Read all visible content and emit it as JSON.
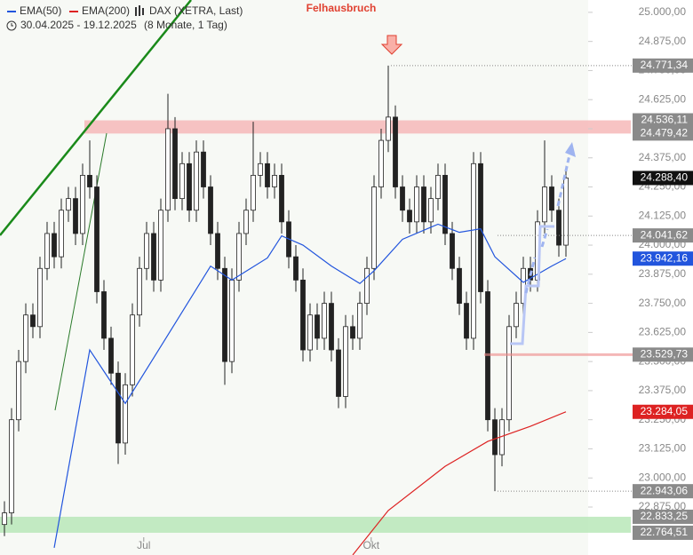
{
  "chart_data": {
    "type": "candlestick",
    "title": "DAX (XETRA, Last)",
    "subtitle": "30.04.2025 - 19.12.2025",
    "period": "(8 Monate, 1 Tag)",
    "annotation": "Felhausbruch",
    "ylim": [
      22669,
      25053
    ],
    "yticks": [
      {
        "value": 25000,
        "label": "25.000,00"
      },
      {
        "value": 24875,
        "label": "24.875,00"
      },
      {
        "value": 24750,
        "label": "24.750,00"
      },
      {
        "value": 24625,
        "label": "24.625,00"
      },
      {
        "value": 24500,
        "label": "24.500,00"
      },
      {
        "value": 24375,
        "label": "24.375,00"
      },
      {
        "value": 24250,
        "label": "24.250,00"
      },
      {
        "value": 24125,
        "label": "24.125,00"
      },
      {
        "value": 24000,
        "label": "24.000,00"
      },
      {
        "value": 23875,
        "label": "23.875,00"
      },
      {
        "value": 23750,
        "label": "23.750,00"
      },
      {
        "value": 23625,
        "label": "23.625,00"
      },
      {
        "value": 23500,
        "label": "23.500,00"
      },
      {
        "value": 23375,
        "label": "23.375,00"
      },
      {
        "value": 23250,
        "label": "23.250,00"
      },
      {
        "value": 23125,
        "label": "23.125,00"
      },
      {
        "value": 23000,
        "label": "23.000,00"
      },
      {
        "value": 22875,
        "label": "22.875,00"
      }
    ],
    "xticks": [
      {
        "value": 19.6,
        "label": "Jul"
      },
      {
        "value": 51.6,
        "label": "Okt"
      }
    ],
    "open": [
      22800,
      22850,
      23250,
      23500,
      23700,
      23650,
      23900,
      24050,
      23950,
      24150,
      24200,
      24050,
      24300,
      24250,
      23800,
      23600,
      23450,
      23150,
      23400,
      23700,
      23900,
      24050,
      23850,
      24150,
      24500,
      24200,
      24350,
      24150,
      24400,
      24250,
      24050,
      23900,
      23500,
      23850,
      24050,
      24150,
      24300,
      24350,
      24250,
      24300,
      24100,
      23950,
      23850,
      23550,
      23700,
      23600,
      23750,
      23550,
      23350,
      23650,
      23600,
      23750,
      23900,
      24250,
      24450,
      24550,
      24250,
      24150,
      24100,
      24250,
      24100,
      24200,
      24300,
      24050,
      23900,
      23750,
      23600,
      24350,
      23800,
      23250,
      23100,
      23250,
      23650,
      23750,
      23900,
      23850,
      24100,
      24250,
      24150,
      24000
    ],
    "high": [
      22900,
      23300,
      23550,
      23750,
      23750,
      23950,
      24100,
      24100,
      24200,
      24250,
      24250,
      24350,
      24450,
      24300,
      23850,
      23650,
      23500,
      23450,
      23750,
      23950,
      24100,
      24100,
      24200,
      24650,
      24550,
      24400,
      24400,
      24450,
      24450,
      24300,
      24100,
      23950,
      23900,
      24100,
      24200,
      24530,
      24400,
      24400,
      24350,
      24350,
      24150,
      24000,
      23900,
      23750,
      23750,
      23800,
      23800,
      23600,
      23700,
      23700,
      23800,
      23950,
      24300,
      24500,
      24771.34,
      24600,
      24300,
      24200,
      24300,
      24300,
      24250,
      24350,
      24350,
      24100,
      23950,
      23800,
      24400,
      24400,
      23850,
      23300,
      23300,
      23700,
      23800,
      23950,
      23950,
      24150,
      24450,
      24300,
      24200,
      24340
    ],
    "low": [
      22750,
      22800,
      23200,
      23450,
      23600,
      23600,
      23850,
      23900,
      23900,
      24100,
      24000,
      24000,
      24200,
      23750,
      23550,
      23400,
      23060,
      23100,
      23350,
      23650,
      23850,
      23800,
      23800,
      24100,
      24150,
      24150,
      24100,
      24100,
      24200,
      24000,
      23850,
      23400,
      23450,
      23800,
      24000,
      24100,
      24250,
      24200,
      24200,
      24050,
      23900,
      23800,
      23500,
      23500,
      23550,
      23550,
      23500,
      23300,
      23300,
      23550,
      23550,
      23700,
      23850,
      24200,
      24400,
      24200,
      24100,
      24050,
      24050,
      24050,
      24050,
      24150,
      24000,
      23850,
      23700,
      23550,
      23550,
      23750,
      23200,
      22943.06,
      23050,
      23200,
      23600,
      23700,
      23800,
      23800,
      24050,
      24100,
      23950,
      23950
    ],
    "close": [
      22850,
      23250,
      23500,
      23700,
      23650,
      23900,
      24050,
      23950,
      24150,
      24200,
      24050,
      24300,
      24250,
      23800,
      23600,
      23450,
      23150,
      23400,
      23700,
      23900,
      24050,
      23850,
      24150,
      24500,
      24200,
      24350,
      24150,
      24400,
      24250,
      24050,
      23900,
      23500,
      23850,
      24050,
      24150,
      24300,
      24350,
      24250,
      24300,
      24100,
      23950,
      23850,
      23550,
      23700,
      23600,
      23750,
      23550,
      23350,
      23650,
      23600,
      23750,
      23900,
      24250,
      24450,
      24550,
      24250,
      24150,
      24100,
      24250,
      24100,
      24200,
      24300,
      24050,
      23900,
      23750,
      23600,
      24350,
      23800,
      23250,
      23100,
      23250,
      23650,
      23750,
      23900,
      23850,
      24100,
      24250,
      24150,
      24000,
      24288.4
    ],
    "series": [
      {
        "name": "EMA(50)",
        "color": "#2255dd",
        "x": [
          7,
          12,
          17,
          22,
          29,
          32,
          37,
          39,
          42,
          46,
          50,
          52,
          56,
          61,
          64,
          67,
          69,
          73,
          77,
          79
        ],
        "values": [
          22700,
          23550,
          23320,
          23565,
          23910,
          23850,
          23945,
          24040,
          24000,
          23910,
          23835,
          23890,
          24025,
          24090,
          24055,
          24070,
          23950,
          23840,
          23910,
          23942.16
        ]
      },
      {
        "name": "EMA(200)",
        "color": "#dd2222",
        "x": [
          49,
          54,
          62,
          68,
          74,
          79
        ],
        "values": [
          22669,
          22860,
          23050,
          23157,
          23222,
          23284.05
        ]
      }
    ],
    "zones": [
      {
        "range": [
          24479.42,
          24536.11
        ],
        "color": "#f6b8b8"
      },
      {
        "range": [
          22764.51,
          22833.25
        ],
        "color": "#b8e8b8"
      }
    ],
    "levels": [
      {
        "value": 24771.34,
        "label": "24.771,34",
        "color": "#8a8a8a"
      },
      {
        "value": 24536.11,
        "label": "24.536,11",
        "color": "#8a8a8a"
      },
      {
        "value": 24479.42,
        "label": "24.479,42",
        "color": "#8a8a8a"
      },
      {
        "value": 24288.4,
        "label": "24.288,40",
        "color": "#111111"
      },
      {
        "value": 24041.62,
        "label": "24.041,62",
        "color": "#8a8a8a"
      },
      {
        "value": 23942.16,
        "label": "23.942,16",
        "color": "#2255dd"
      },
      {
        "value": 23529.73,
        "label": "23.529,73",
        "color": "#8a8a8a"
      },
      {
        "value": 23284.05,
        "label": "23.284,05",
        "color": "#dd2222"
      },
      {
        "value": 22943.06,
        "label": "22.943,06",
        "color": "#8a8a8a"
      },
      {
        "value": 22833.25,
        "label": "22.833,25",
        "color": "#8a8a8a"
      },
      {
        "value": 22764.51,
        "label": "22.764,51",
        "color": "#8a8a8a"
      }
    ]
  }
}
